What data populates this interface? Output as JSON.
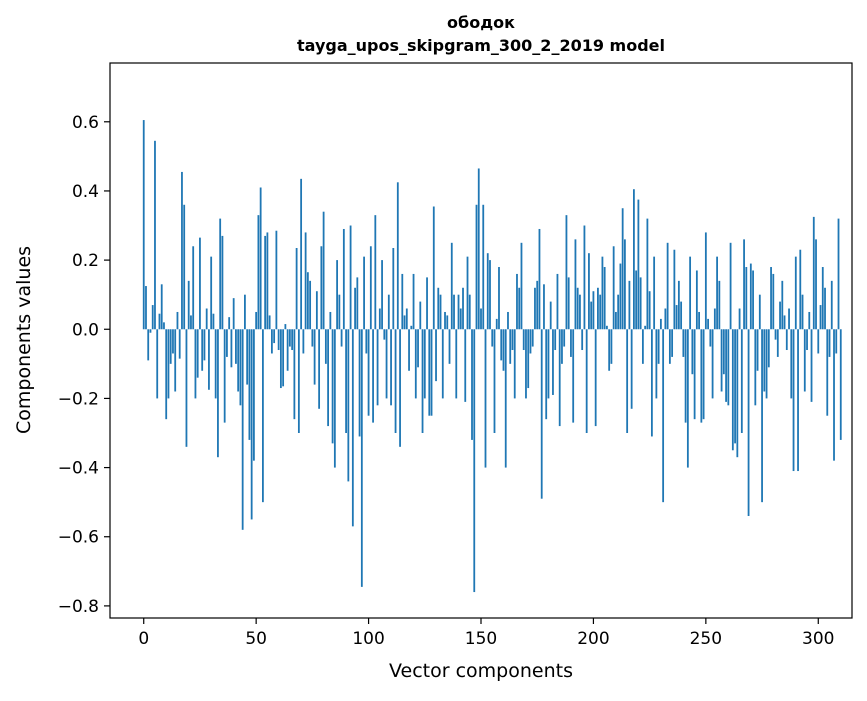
{
  "chart_data": {
    "type": "bar",
    "title": "ободок",
    "subtitle": "tayga_upos_skipgram_300_2_2019 model",
    "xlabel": "Vector components",
    "ylabel": "Components values",
    "xlim": [
      -15,
      315
    ],
    "ylim": [
      -0.835,
      0.77
    ],
    "xticks": [
      0,
      50,
      100,
      150,
      200,
      250,
      300
    ],
    "xtick_labels": [
      "0",
      "50",
      "100",
      "150",
      "200",
      "250",
      "300"
    ],
    "yticks": [
      -0.8,
      -0.6,
      -0.4,
      -0.2,
      0.0,
      0.2,
      0.4,
      0.6
    ],
    "ytick_labels": [
      "−0.8",
      "−0.6",
      "−0.4",
      "−0.2",
      "0.0",
      "0.2",
      "0.4",
      "0.6"
    ],
    "bar_color": "#1f77b4",
    "values": [
      0.605,
      0.125,
      -0.09,
      -0.01,
      0.07,
      0.545,
      -0.2,
      0.045,
      0.13,
      0.02,
      -0.26,
      -0.2,
      -0.1,
      -0.07,
      -0.18,
      0.05,
      -0.085,
      0.455,
      0.36,
      -0.34,
      0.14,
      0.04,
      0.24,
      -0.2,
      -0.14,
      0.265,
      -0.12,
      -0.09,
      0.06,
      -0.175,
      0.21,
      0.045,
      -0.2,
      -0.37,
      0.32,
      0.27,
      -0.27,
      -0.08,
      0.035,
      -0.11,
      0.09,
      -0.1,
      -0.18,
      -0.22,
      -0.58,
      0.1,
      -0.16,
      -0.32,
      -0.55,
      -0.38,
      0.05,
      0.33,
      0.41,
      -0.5,
      0.27,
      0.28,
      0.04,
      -0.07,
      -0.04,
      0.285,
      -0.06,
      -0.17,
      -0.165,
      0.015,
      -0.12,
      -0.05,
      -0.06,
      -0.26,
      0.235,
      -0.3,
      0.435,
      -0.07,
      0.28,
      0.165,
      0.14,
      -0.05,
      -0.16,
      0.11,
      -0.23,
      0.24,
      0.34,
      -0.1,
      -0.28,
      0.05,
      -0.33,
      -0.4,
      0.2,
      0.1,
      -0.05,
      0.29,
      -0.3,
      -0.44,
      0.3,
      -0.57,
      0.12,
      0.15,
      -0.31,
      -0.745,
      0.21,
      -0.07,
      -0.25,
      0.24,
      -0.27,
      0.33,
      -0.22,
      0.06,
      0.2,
      -0.03,
      -0.2,
      0.1,
      -0.22,
      0.235,
      -0.3,
      0.425,
      -0.34,
      0.16,
      0.04,
      0.06,
      -0.12,
      0.01,
      0.16,
      -0.2,
      -0.11,
      0.08,
      -0.3,
      -0.2,
      0.15,
      -0.25,
      -0.25,
      0.355,
      -0.15,
      0.12,
      0.1,
      -0.2,
      0.05,
      0.04,
      -0.1,
      0.25,
      0.1,
      -0.2,
      0.1,
      0.06,
      0.12,
      -0.21,
      0.21,
      0.1,
      -0.32,
      -0.76,
      0.36,
      0.465,
      0.06,
      0.36,
      -0.4,
      0.22,
      0.2,
      -0.05,
      -0.3,
      0.03,
      0.18,
      -0.09,
      -0.12,
      -0.4,
      0.05,
      -0.1,
      -0.06,
      -0.2,
      0.16,
      0.12,
      0.25,
      -0.06,
      -0.2,
      -0.17,
      -0.07,
      -0.05,
      0.12,
      0.14,
      0.29,
      -0.49,
      0.13,
      -0.26,
      -0.2,
      0.08,
      -0.19,
      -0.06,
      0.16,
      -0.28,
      -0.1,
      -0.05,
      0.33,
      0.15,
      -0.08,
      -0.27,
      0.26,
      0.12,
      0.1,
      -0.06,
      0.3,
      -0.3,
      0.22,
      0.08,
      0.11,
      -0.28,
      0.12,
      0.1,
      0.21,
      0.18,
      0.01,
      -0.12,
      -0.1,
      0.24,
      0.05,
      0.1,
      0.19,
      0.35,
      0.26,
      -0.3,
      0.14,
      -0.23,
      0.405,
      0.17,
      0.375,
      0.15,
      -0.1,
      0.01,
      0.32,
      0.11,
      -0.31,
      0.21,
      -0.2,
      -0.1,
      0.03,
      -0.5,
      0.06,
      0.25,
      -0.1,
      -0.08,
      0.23,
      0.07,
      0.14,
      0.08,
      -0.08,
      -0.27,
      -0.4,
      0.21,
      -0.13,
      -0.26,
      0.17,
      0.05,
      -0.27,
      -0.26,
      0.28,
      0.03,
      -0.05,
      -0.2,
      0.06,
      0.21,
      0.14,
      -0.18,
      -0.13,
      -0.21,
      -0.22,
      0.25,
      -0.35,
      -0.33,
      -0.37,
      0.06,
      -0.3,
      0.26,
      0.18,
      -0.54,
      0.19,
      0.17,
      -0.22,
      -0.12,
      0.1,
      -0.5,
      -0.18,
      -0.2,
      -0.11,
      0.18,
      0.16,
      -0.03,
      -0.08,
      0.08,
      0.14,
      0.04,
      -0.06,
      0.06,
      -0.2,
      -0.41,
      0.21,
      -0.41,
      0.23,
      0.1,
      -0.18,
      -0.06,
      0.05,
      -0.21,
      0.325,
      0.26,
      -0.07,
      0.07,
      0.18,
      0.12,
      -0.25,
      -0.08,
      0.14,
      -0.38,
      -0.07,
      0.32,
      -0.32
    ]
  }
}
